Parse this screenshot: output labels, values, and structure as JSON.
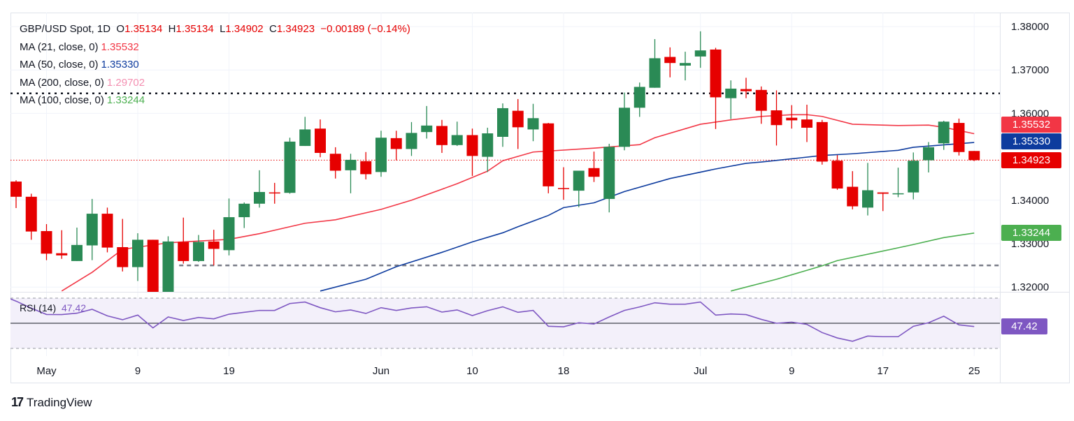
{
  "header": {
    "symbol": "GBP/USD Spot, 1D",
    "open_label": "O",
    "open": "1.35134",
    "high_label": "H",
    "high": "1.35134",
    "low_label": "L",
    "low": "1.34902",
    "close_label": "C",
    "close": "1.34923",
    "change": "−0.00189 (−0.14%)"
  },
  "indicators": [
    {
      "label": "MA (21, close, 0)",
      "value": "1.35532",
      "color": "#f23645"
    },
    {
      "label": "MA (50, close, 0)",
      "value": "1.35330",
      "color": "#0d3b9e"
    },
    {
      "label": "MA (200, close, 0)",
      "value": "1.29702",
      "color": "#f48fb1"
    },
    {
      "label": "MA (100, close, 0)",
      "value": "1.33244",
      "color": "#4caf50"
    }
  ],
  "rsi": {
    "label": "RSI (14)",
    "value": "47.42",
    "color": "#7e57c2"
  },
  "price_badges": [
    {
      "value": "1.35532",
      "color": "#f23645"
    },
    {
      "value": "1.35330",
      "color": "#0d3b9e"
    },
    {
      "value": "1.34923",
      "color": "#e60000"
    },
    {
      "value": "1.33244",
      "color": "#4caf50"
    }
  ],
  "rsi_badge": {
    "value": "47.42",
    "color": "#7e57c2"
  },
  "branding": {
    "name": "TradingView"
  },
  "chart_data": {
    "type": "candlestick",
    "title": "GBP/USD Spot, 1D",
    "colors": {
      "up": "#2a8a55",
      "down": "#e60000"
    },
    "grid": true,
    "ylim": [
      1.3185,
      1.383
    ],
    "y_ticks": [
      "1.38000",
      "1.37000",
      "1.36000",
      "1.34000",
      "1.33000",
      "1.32000"
    ],
    "x_ticks": [
      {
        "label": "May",
        "date": "May 1"
      },
      {
        "label": "9",
        "date": "May 9"
      },
      {
        "label": "19",
        "date": "May 19"
      },
      {
        "label": "Jun",
        "date": "Jun 2"
      },
      {
        "label": "10",
        "date": "Jun 10"
      },
      {
        "label": "18",
        "date": "Jun 18"
      },
      {
        "label": "Jul",
        "date": "Jul 1"
      },
      {
        "label": "9",
        "date": "Jul 9"
      },
      {
        "label": "17",
        "date": "Jul 17"
      },
      {
        "label": "25",
        "date": "Jul 25"
      }
    ],
    "candles_columns": [
      "date",
      "open",
      "high",
      "low",
      "close"
    ],
    "candles": [
      [
        "Apr 29",
        1.3443,
        1.3446,
        1.3382,
        1.3408
      ],
      [
        "Apr 30",
        1.3408,
        1.3415,
        1.3309,
        1.3328
      ],
      [
        "May 1",
        1.3329,
        1.3345,
        1.3262,
        1.3277
      ],
      [
        "May 2",
        1.3278,
        1.3331,
        1.3265,
        1.3273
      ],
      [
        "May 5",
        1.326,
        1.3337,
        1.326,
        1.3297
      ],
      [
        "May 6",
        1.3296,
        1.3403,
        1.3262,
        1.3369
      ],
      [
        "May 7",
        1.3369,
        1.3383,
        1.328,
        1.3291
      ],
      [
        "May 8",
        1.3292,
        1.3357,
        1.3236,
        1.3246
      ],
      [
        "May 9",
        1.3246,
        1.3324,
        1.3214,
        1.3309
      ],
      [
        "May 12",
        1.3309,
        1.3309,
        1.314,
        1.317
      ],
      [
        "May 13",
        1.317,
        1.3317,
        1.314,
        1.3305
      ],
      [
        "May 14",
        1.3304,
        1.336,
        1.3254,
        1.326
      ],
      [
        "May 15",
        1.326,
        1.332,
        1.3258,
        1.3304
      ],
      [
        "May 16",
        1.3305,
        1.3332,
        1.325,
        1.3288
      ],
      [
        "May 19",
        1.3285,
        1.3404,
        1.3273,
        1.3361
      ],
      [
        "May 20",
        1.3361,
        1.3395,
        1.3336,
        1.3392
      ],
      [
        "May 21",
        1.3392,
        1.3469,
        1.3383,
        1.3419
      ],
      [
        "May 22",
        1.3418,
        1.344,
        1.3392,
        1.3416
      ],
      [
        "May 23",
        1.3417,
        1.3544,
        1.3415,
        1.3535
      ],
      [
        "May 26",
        1.3525,
        1.3592,
        1.3525,
        1.3563
      ],
      [
        "May 27",
        1.3565,
        1.3586,
        1.3499,
        1.3509
      ],
      [
        "May 28",
        1.3507,
        1.3522,
        1.345,
        1.3468
      ],
      [
        "May 29",
        1.3469,
        1.3507,
        1.3416,
        1.3493
      ],
      [
        "May 30",
        1.349,
        1.3511,
        1.3448,
        1.346
      ],
      [
        "Jun 2",
        1.3465,
        1.356,
        1.3454,
        1.3544
      ],
      [
        "Jun 3",
        1.3543,
        1.356,
        1.3492,
        1.3518
      ],
      [
        "Jun 4",
        1.3518,
        1.358,
        1.3502,
        1.3555
      ],
      [
        "Jun 5",
        1.3557,
        1.3617,
        1.3542,
        1.3572
      ],
      [
        "Jun 6",
        1.3571,
        1.3585,
        1.3509,
        1.3527
      ],
      [
        "Jun 9",
        1.3527,
        1.3581,
        1.3525,
        1.355
      ],
      [
        "Jun 10",
        1.355,
        1.3565,
        1.3456,
        1.3502
      ],
      [
        "Jun 11",
        1.35,
        1.3567,
        1.3465,
        1.3554
      ],
      [
        "Jun 12",
        1.3546,
        1.3623,
        1.3523,
        1.3612
      ],
      [
        "Jun 13",
        1.3606,
        1.3633,
        1.3518,
        1.3568
      ],
      [
        "Jun 16",
        1.3563,
        1.3622,
        1.3536,
        1.3589
      ],
      [
        "Jun 17",
        1.3577,
        1.3578,
        1.3416,
        1.3432
      ],
      [
        "Jun 18",
        1.3428,
        1.3476,
        1.3401,
        1.3427
      ],
      [
        "Jun 19",
        1.3422,
        1.3468,
        1.3384,
        1.3468
      ],
      [
        "Jun 20",
        1.3474,
        1.3512,
        1.3442,
        1.3454
      ],
      [
        "Jun 23",
        1.3403,
        1.353,
        1.3372,
        1.3523
      ],
      [
        "Jun 24",
        1.3523,
        1.3648,
        1.3515,
        1.3613
      ],
      [
        "Jun 25",
        1.3613,
        1.3671,
        1.3592,
        1.3661
      ],
      [
        "Jun 26",
        1.3659,
        1.3771,
        1.3659,
        1.3727
      ],
      [
        "Jun 27",
        1.373,
        1.3752,
        1.3683,
        1.3716
      ],
      [
        "Jun 30",
        1.371,
        1.3742,
        1.3676,
        1.3716
      ],
      [
        "Jul 1",
        1.3731,
        1.3789,
        1.3705,
        1.3745
      ],
      [
        "Jul 2",
        1.3747,
        1.3751,
        1.3564,
        1.3637
      ],
      [
        "Jul 3",
        1.3635,
        1.3676,
        1.3587,
        1.3657
      ],
      [
        "Jul 4",
        1.3656,
        1.3682,
        1.3635,
        1.3651
      ],
      [
        "Jul 7",
        1.3654,
        1.3662,
        1.3576,
        1.3606
      ],
      [
        "Jul 8",
        1.3607,
        1.3653,
        1.3526,
        1.3573
      ],
      [
        "Jul 9",
        1.359,
        1.3619,
        1.3565,
        1.3584
      ],
      [
        "Jul 10",
        1.3586,
        1.362,
        1.3534,
        1.3567
      ],
      [
        "Jul 11",
        1.358,
        1.3585,
        1.3482,
        1.3489
      ],
      [
        "Jul 14",
        1.3491,
        1.3504,
        1.3424,
        1.3427
      ],
      [
        "Jul 15",
        1.3431,
        1.3467,
        1.3379,
        1.3386
      ],
      [
        "Jul 16",
        1.3383,
        1.3486,
        1.3365,
        1.3423
      ],
      [
        "Jul 17",
        1.3418,
        1.3418,
        1.3375,
        1.3415
      ],
      [
        "Jul 18",
        1.3415,
        1.3475,
        1.3407,
        1.3416
      ],
      [
        "Jul 21",
        1.3418,
        1.351,
        1.3402,
        1.3491
      ],
      [
        "Jul 22",
        1.3492,
        1.3534,
        1.3464,
        1.3522
      ],
      [
        "Jul 23",
        1.3531,
        1.3583,
        1.3516,
        1.3581
      ],
      [
        "Jul 24",
        1.3578,
        1.3588,
        1.3503,
        1.3511
      ],
      [
        "Jul 25",
        1.35134,
        1.35134,
        1.34902,
        1.34923
      ]
    ],
    "moving_averages": [
      {
        "name": "MA (21, close, 0)",
        "color": "#f23645",
        "points": [
          [
            "May 2",
            1.3191
          ],
          [
            "May 6",
            1.3234
          ],
          [
            "May 8",
            1.3287
          ],
          [
            "May 13",
            1.3302
          ],
          [
            "May 19",
            1.331
          ],
          [
            "May 21",
            1.3323
          ],
          [
            "May 26",
            1.3347
          ],
          [
            "May 28",
            1.3355
          ],
          [
            "Jun 2",
            1.3379
          ],
          [
            "Jun 4",
            1.34
          ],
          [
            "Jun 9",
            1.3438
          ],
          [
            "Jun 11",
            1.3467
          ],
          [
            "Jun 12",
            1.3491
          ],
          [
            "Jun 16",
            1.3511
          ],
          [
            "Jun 20",
            1.352
          ],
          [
            "Jun 25",
            1.3528
          ],
          [
            "Jun 26",
            1.3544
          ],
          [
            "Jul 1",
            1.3575
          ],
          [
            "Jul 3",
            1.3585
          ],
          [
            "Jul 7",
            1.3593
          ],
          [
            "Jul 9",
            1.3597
          ],
          [
            "Jul 10",
            1.3597
          ],
          [
            "Jul 11",
            1.3593
          ],
          [
            "Jul 15",
            1.3575
          ],
          [
            "Jul 18",
            1.3572
          ],
          [
            "Jul 22",
            1.3573
          ],
          [
            "Jul 23",
            1.3568
          ],
          [
            "Jul 25",
            1.35532
          ]
        ]
      },
      {
        "name": "MA (50, close, 0)",
        "color": "#0d3b9e",
        "points": [
          [
            "May 27",
            1.3191
          ],
          [
            "May 30",
            1.3218
          ],
          [
            "Jun 3",
            1.3247
          ],
          [
            "Jun 6",
            1.328
          ],
          [
            "Jun 10",
            1.3304
          ],
          [
            "Jun 12",
            1.3325
          ],
          [
            "Jun 13",
            1.3339
          ],
          [
            "Jun 17",
            1.3365
          ],
          [
            "Jun 18",
            1.3383
          ],
          [
            "Jun 20",
            1.3394
          ],
          [
            "Jun 24",
            1.342
          ],
          [
            "Jun 27",
            1.345
          ],
          [
            "Jul 2",
            1.3472
          ],
          [
            "Jul 4",
            1.3485
          ],
          [
            "Jul 7",
            1.3488
          ],
          [
            "Jul 11",
            1.3503
          ],
          [
            "Jul 15",
            1.3507
          ],
          [
            "Jul 18",
            1.3515
          ],
          [
            "Jul 21",
            1.3522
          ],
          [
            "Jul 25",
            1.3533
          ]
        ]
      },
      {
        "name": "MA (100, close, 0)",
        "color": "#4caf50",
        "points": [
          [
            "Jul 3",
            1.3191
          ],
          [
            "Jul 8",
            1.3218
          ],
          [
            "Jul 11",
            1.3249
          ],
          [
            "Jul 14",
            1.3261
          ],
          [
            "Jul 17",
            1.3283
          ],
          [
            "Jul 21",
            1.3298
          ],
          [
            "Jul 23",
            1.3314
          ],
          [
            "Jul 25",
            1.33244
          ]
        ]
      }
    ],
    "horizontal_levels": [
      {
        "price": 1.3646,
        "style": "dotted",
        "color": "#131722"
      },
      {
        "price": 1.325,
        "style": "dashed",
        "color": "#787b86",
        "from": "May 14"
      },
      {
        "price": 1.34923,
        "style": "dotted",
        "color": "#e60000"
      }
    ],
    "rsi": {
      "label": "RSI (14)",
      "bands": [
        70,
        50,
        30
      ],
      "color": "#7e57c2",
      "values": [
        67.6,
        62,
        57.0,
        56.9,
        58.0,
        61.1,
        55.9,
        52.8,
        56.5,
        46.3,
        55.0,
        52.2,
        54.6,
        53.5,
        57.2,
        58.7,
        60.2,
        60.2,
        65.7,
        66.9,
        62.4,
        59.1,
        60.6,
        57.8,
        62.4,
        60.2,
        62.2,
        63.1,
        58.9,
        60.6,
        56.1,
        60.0,
        63.1,
        58.7,
        60.2,
        47.6,
        47.2,
        50.4,
        49.4,
        55.0,
        60.2,
        63.0,
        66.3,
        65.2,
        65.2,
        66.9,
        56.5,
        57.4,
        56.9,
        53.1,
        50.0,
        50.9,
        49.1,
        42.6,
        38.3,
        35.7,
        39.8,
        39.3,
        39.3,
        47.6,
        50.4,
        55.6,
        48.7,
        47.42
      ]
    }
  }
}
